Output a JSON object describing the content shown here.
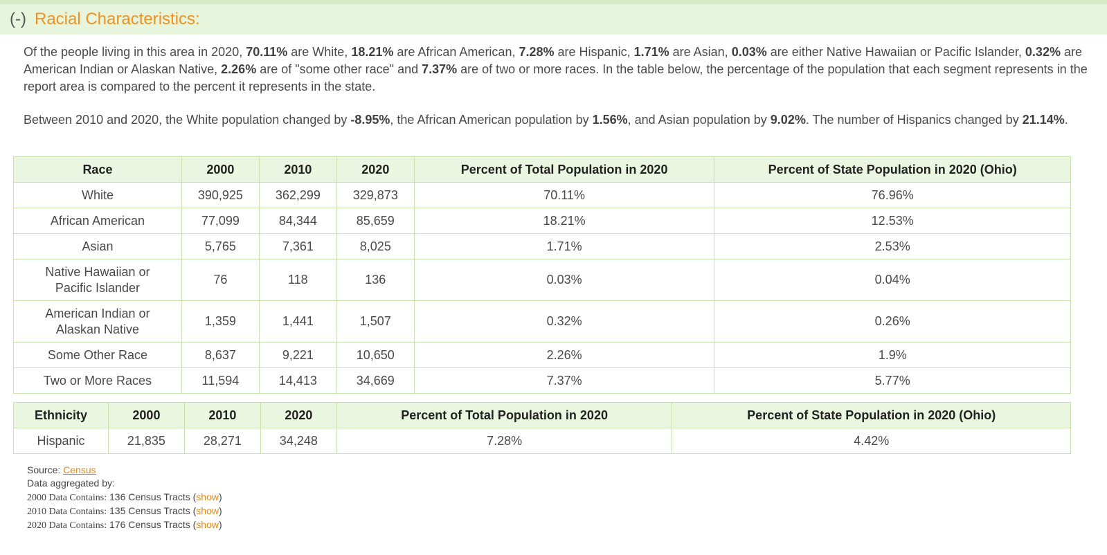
{
  "header": {
    "toggle": "(-)",
    "title": "Racial Characteristics:"
  },
  "summary": {
    "p1": [
      "Of the people living in this area in 2020, ",
      "70.11%",
      " are White, ",
      "18.21%",
      " are African American, ",
      "7.28%",
      " are Hispanic, ",
      "1.71%",
      " are Asian, ",
      "0.03%",
      " are either Native Hawaiian or Pacific Islander, ",
      "0.32%",
      " are American Indian or Alaskan Native, ",
      "2.26%",
      " are of \"some other race\" and ",
      "7.37%",
      " are of two or more races. In the table below, the percentage of the population that each segment represents in the report area is compared to the percent it represents in the state."
    ],
    "p2": [
      "Between 2010 and 2020, the White population changed by ",
      "-8.95%",
      ", the African American population by ",
      "1.56%",
      ", and Asian population by ",
      "9.02%",
      ". The number of Hispanics changed by ",
      "21.14%",
      "."
    ]
  },
  "race_table": {
    "headers": [
      "Race",
      "2000",
      "2010",
      "2020",
      "Percent of Total Population in 2020",
      "Percent of State Population in 2020 (Ohio)"
    ],
    "rows": [
      [
        "White",
        "390,925",
        "362,299",
        "329,873",
        "70.11%",
        "76.96%"
      ],
      [
        "African American",
        "77,099",
        "84,344",
        "85,659",
        "18.21%",
        "12.53%"
      ],
      [
        "Asian",
        "5,765",
        "7,361",
        "8,025",
        "1.71%",
        "2.53%"
      ],
      [
        "Native Hawaiian or Pacific Islander",
        "76",
        "118",
        "136",
        "0.03%",
        "0.04%"
      ],
      [
        "American Indian or Alaskan Native",
        "1,359",
        "1,441",
        "1,507",
        "0.32%",
        "0.26%"
      ],
      [
        "Some Other Race",
        "8,637",
        "9,221",
        "10,650",
        "2.26%",
        "1.9%"
      ],
      [
        "Two or More Races",
        "11,594",
        "14,413",
        "34,669",
        "7.37%",
        "5.77%"
      ]
    ]
  },
  "ethnicity_table": {
    "headers": [
      "Ethnicity",
      "2000",
      "2010",
      "2020",
      "Percent of Total Population in 2020",
      "Percent of State Population in 2020 (Ohio)"
    ],
    "rows": [
      [
        "Hispanic",
        "21,835",
        "28,271",
        "34,248",
        "7.28%",
        "4.42%"
      ]
    ]
  },
  "sources": {
    "source_label": "Source: ",
    "source_link": "Census",
    "aggregated_label": "Data aggregated by:",
    "lines": [
      {
        "label": "2000 Data Contains:",
        "text": " 136 Census Tracts (",
        "link": "show",
        "close": ")"
      },
      {
        "label": "2010 Data Contains:",
        "text": " 135 Census Tracts (",
        "link": "show",
        "close": ")"
      },
      {
        "label": "2020 Data Contains:",
        "text": " 176 Census Tracts (",
        "link": "show",
        "close": ")"
      }
    ]
  },
  "colors": {
    "accent": "#f0901e",
    "header_bg": "#e8f5dd",
    "table_border": "#c6e3b0",
    "table_header_bg": "#eaf6e0",
    "link": "#e8891a"
  }
}
